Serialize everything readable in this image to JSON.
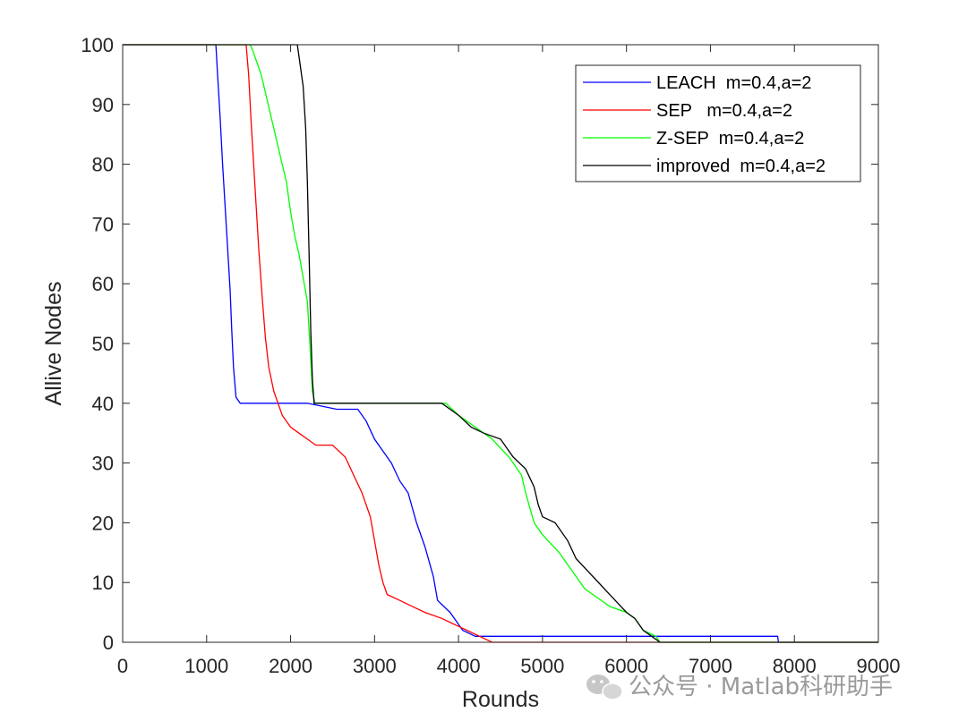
{
  "chart_data": {
    "type": "line",
    "title": "",
    "xlabel": "Rounds",
    "ylabel": "Allive Nodes",
    "xlim": [
      0,
      9000
    ],
    "ylim": [
      0,
      100
    ],
    "xticks": [
      0,
      1000,
      2000,
      3000,
      4000,
      5000,
      6000,
      7000,
      8000,
      9000
    ],
    "yticks": [
      0,
      10,
      20,
      30,
      40,
      50,
      60,
      70,
      80,
      90,
      100
    ],
    "grid": false,
    "legend_position": "top-right",
    "series": [
      {
        "name": "LEACH  m=0.4,a=2",
        "color": "#0000ff",
        "points": [
          [
            0,
            100
          ],
          [
            1110,
            100
          ],
          [
            1130,
            95
          ],
          [
            1160,
            88
          ],
          [
            1190,
            80
          ],
          [
            1220,
            73
          ],
          [
            1250,
            66
          ],
          [
            1280,
            59
          ],
          [
            1300,
            52
          ],
          [
            1320,
            46
          ],
          [
            1350,
            41
          ],
          [
            1400,
            40
          ],
          [
            2200,
            40
          ],
          [
            2550,
            39
          ],
          [
            2800,
            39
          ],
          [
            2900,
            37
          ],
          [
            3000,
            34
          ],
          [
            3100,
            32
          ],
          [
            3200,
            30
          ],
          [
            3300,
            27
          ],
          [
            3400,
            25
          ],
          [
            3500,
            20
          ],
          [
            3600,
            16
          ],
          [
            3700,
            11
          ],
          [
            3750,
            7
          ],
          [
            3900,
            5
          ],
          [
            4050,
            2
          ],
          [
            4200,
            1
          ],
          [
            4500,
            1
          ],
          [
            7800,
            1
          ],
          [
            7810,
            0
          ],
          [
            9000,
            0
          ]
        ]
      },
      {
        "name": "SEP   m=0.4,a=2",
        "color": "#ff0000",
        "points": [
          [
            0,
            100
          ],
          [
            1470,
            100
          ],
          [
            1500,
            95
          ],
          [
            1530,
            87
          ],
          [
            1560,
            80
          ],
          [
            1590,
            73
          ],
          [
            1620,
            66
          ],
          [
            1660,
            58
          ],
          [
            1700,
            51
          ],
          [
            1740,
            46
          ],
          [
            1800,
            42
          ],
          [
            1850,
            40
          ],
          [
            1900,
            38
          ],
          [
            2000,
            36
          ],
          [
            2100,
            35
          ],
          [
            2200,
            34
          ],
          [
            2300,
            33
          ],
          [
            2500,
            33
          ],
          [
            2650,
            31
          ],
          [
            2750,
            28
          ],
          [
            2850,
            25
          ],
          [
            2950,
            21
          ],
          [
            3000,
            17
          ],
          [
            3050,
            13
          ],
          [
            3100,
            10
          ],
          [
            3150,
            8
          ],
          [
            3300,
            7
          ],
          [
            3450,
            6
          ],
          [
            3600,
            5
          ],
          [
            3800,
            4
          ],
          [
            3950,
            3
          ],
          [
            4100,
            2
          ],
          [
            4250,
            1
          ],
          [
            4400,
            0
          ],
          [
            9000,
            0
          ]
        ]
      },
      {
        "name": "Z-SEP  m=0.4,a=2",
        "color": "#00ff00",
        "points": [
          [
            0,
            100
          ],
          [
            1520,
            100
          ],
          [
            1550,
            99
          ],
          [
            1600,
            97
          ],
          [
            1650,
            95
          ],
          [
            1700,
            92
          ],
          [
            1750,
            89
          ],
          [
            1800,
            86
          ],
          [
            1850,
            83
          ],
          [
            1900,
            80
          ],
          [
            1950,
            77
          ],
          [
            2000,
            72
          ],
          [
            2050,
            68
          ],
          [
            2100,
            65
          ],
          [
            2150,
            61
          ],
          [
            2200,
            57
          ],
          [
            2230,
            50
          ],
          [
            2260,
            42
          ],
          [
            2290,
            40
          ],
          [
            3850,
            40
          ],
          [
            4000,
            38
          ],
          [
            4200,
            36
          ],
          [
            4400,
            34
          ],
          [
            4600,
            31
          ],
          [
            4750,
            28
          ],
          [
            4800,
            25
          ],
          [
            4900,
            20
          ],
          [
            5000,
            18
          ],
          [
            5200,
            15
          ],
          [
            5400,
            11
          ],
          [
            5500,
            9
          ],
          [
            5600,
            8
          ],
          [
            5800,
            6
          ],
          [
            6000,
            5
          ],
          [
            6100,
            4
          ],
          [
            6200,
            2
          ],
          [
            6350,
            1
          ],
          [
            6400,
            0
          ],
          [
            9000,
            0
          ]
        ]
      },
      {
        "name": "improved  m=0.4,a=2",
        "color": "#000000",
        "points": [
          [
            0,
            100
          ],
          [
            2080,
            100
          ],
          [
            2110,
            97
          ],
          [
            2150,
            93
          ],
          [
            2180,
            86
          ],
          [
            2200,
            77
          ],
          [
            2220,
            65
          ],
          [
            2240,
            52
          ],
          [
            2260,
            44
          ],
          [
            2280,
            40
          ],
          [
            3800,
            40
          ],
          [
            3900,
            39
          ],
          [
            4000,
            38
          ],
          [
            4150,
            36
          ],
          [
            4300,
            35
          ],
          [
            4500,
            34
          ],
          [
            4650,
            31
          ],
          [
            4800,
            29
          ],
          [
            4900,
            26
          ],
          [
            4950,
            23
          ],
          [
            5000,
            21
          ],
          [
            5150,
            20
          ],
          [
            5300,
            17
          ],
          [
            5400,
            14
          ],
          [
            5600,
            11
          ],
          [
            5800,
            8
          ],
          [
            6000,
            5
          ],
          [
            6100,
            4
          ],
          [
            6200,
            2
          ],
          [
            6300,
            1
          ],
          [
            6400,
            0
          ],
          [
            9000,
            0
          ]
        ]
      }
    ]
  },
  "watermark": {
    "icon": "wechat-icon",
    "text": "公众号 · Matlab科研助手"
  }
}
